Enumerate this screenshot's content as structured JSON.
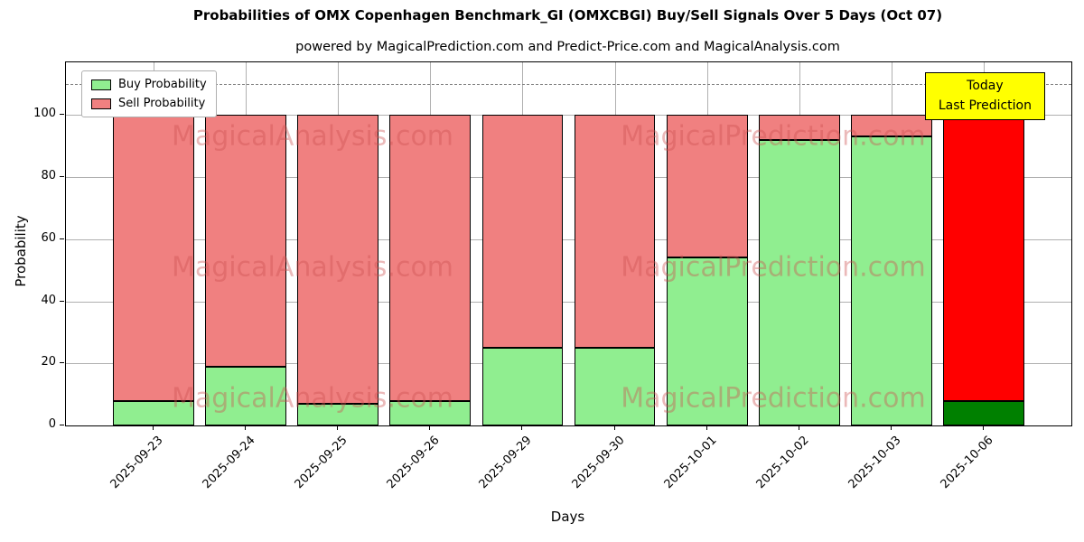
{
  "title": "Probabilities of OMX Copenhagen Benchmark_GI (OMXCBGI) Buy/Sell Signals Over 5 Days (Oct 07)",
  "subtitle": "powered by MagicalPrediction.com and Predict-Price.com and MagicalAnalysis.com",
  "legend": {
    "items": [
      {
        "label": "Buy Probability",
        "color": "#90ee90"
      },
      {
        "label": "Sell Probability",
        "color": "#f08080"
      }
    ]
  },
  "annotation": {
    "line1": "Today",
    "line2": "Last Prediction"
  },
  "watermarks": {
    "left": "MagicalAnalysis.com",
    "right": "MagicalPrediction.com"
  },
  "colors": {
    "buy": "#90ee90",
    "sell": "#f08080",
    "last_buy": "#008000",
    "last_sell": "#ff0000",
    "edge": "#000000",
    "grid": "#b0b0b0",
    "dashed": "#7f7f7f",
    "annotation_bg": "#ffff00",
    "watermark": "rgba(205,80,80,0.4)"
  },
  "chart_data": {
    "type": "bar",
    "stacked": true,
    "title": "Probabilities of OMX Copenhagen Benchmark_GI (OMXCBGI) Buy/Sell Signals Over 5 Days (Oct 07)",
    "xlabel": "Days",
    "ylabel": "Probability",
    "categories": [
      "2025-09-23",
      "2025-09-24",
      "2025-09-25",
      "2025-09-26",
      "2025-09-29",
      "2025-09-30",
      "2025-10-01",
      "2025-10-02",
      "2025-10-03",
      "2025-10-06"
    ],
    "series": [
      {
        "name": "Buy Probability",
        "values": [
          8,
          19,
          7,
          8,
          25,
          25,
          54,
          92,
          93,
          8
        ]
      },
      {
        "name": "Sell Probability",
        "values": [
          92,
          81,
          93,
          92,
          75,
          75,
          46,
          8,
          7,
          92
        ]
      }
    ],
    "ylim": [
      0,
      117
    ],
    "yticks": [
      0,
      20,
      40,
      60,
      80,
      100
    ],
    "dashed_line_y": 110,
    "grid": true,
    "legend_position": "upper left",
    "bar_width_units": 0.88,
    "xlim": [
      -0.95,
      9.95
    ],
    "last_bar_special": true
  }
}
